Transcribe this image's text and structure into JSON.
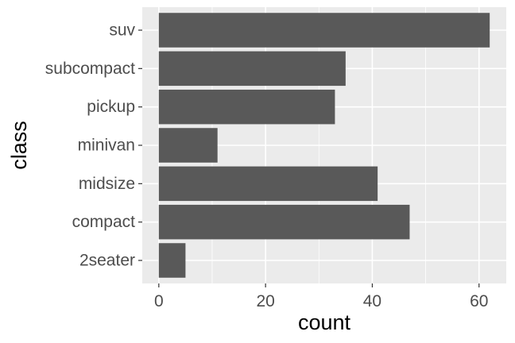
{
  "chart_data": {
    "type": "bar",
    "orientation": "horizontal",
    "categories": [
      "2seater",
      "compact",
      "midsize",
      "minivan",
      "pickup",
      "subcompact",
      "suv"
    ],
    "values": [
      5,
      47,
      41,
      11,
      33,
      35,
      62
    ],
    "xlabel": "count",
    "ylabel": "class",
    "xlim": [
      -3.1,
      65.1
    ],
    "x_ticks": [
      0,
      20,
      40,
      60
    ],
    "grid": true,
    "legend": "none"
  },
  "colors": {
    "panel_background": "#ebebeb",
    "grid_major": "#ffffff",
    "bar_fill": "#595959",
    "tick_text": "#4d4d4d",
    "title_text": "#000000"
  }
}
